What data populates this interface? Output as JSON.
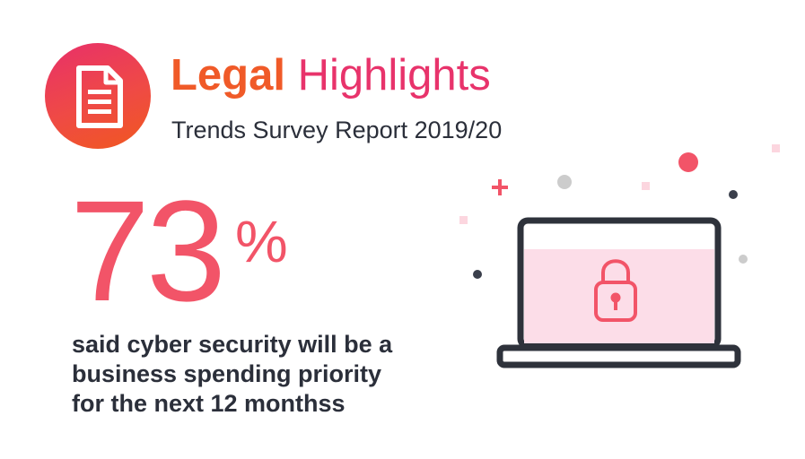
{
  "header": {
    "title_bold": "Legal",
    "title_light": "Highlights",
    "subtitle": "Trends Survey Report 2019/20"
  },
  "stat": {
    "value": "73",
    "unit": "%",
    "description_lines": [
      "said cyber security will be a",
      "business spending priority",
      "for the next 12 monthss"
    ]
  },
  "icons": {
    "logo": "document-icon",
    "laptop": "laptop-icon",
    "lock": "padlock-icon"
  },
  "colors": {
    "accent_orange": "#f05a28",
    "accent_pink": "#e8336b",
    "stat_red": "#f25468",
    "text_dark": "#2b2f3a",
    "screen_pink": "#fcdde8"
  }
}
